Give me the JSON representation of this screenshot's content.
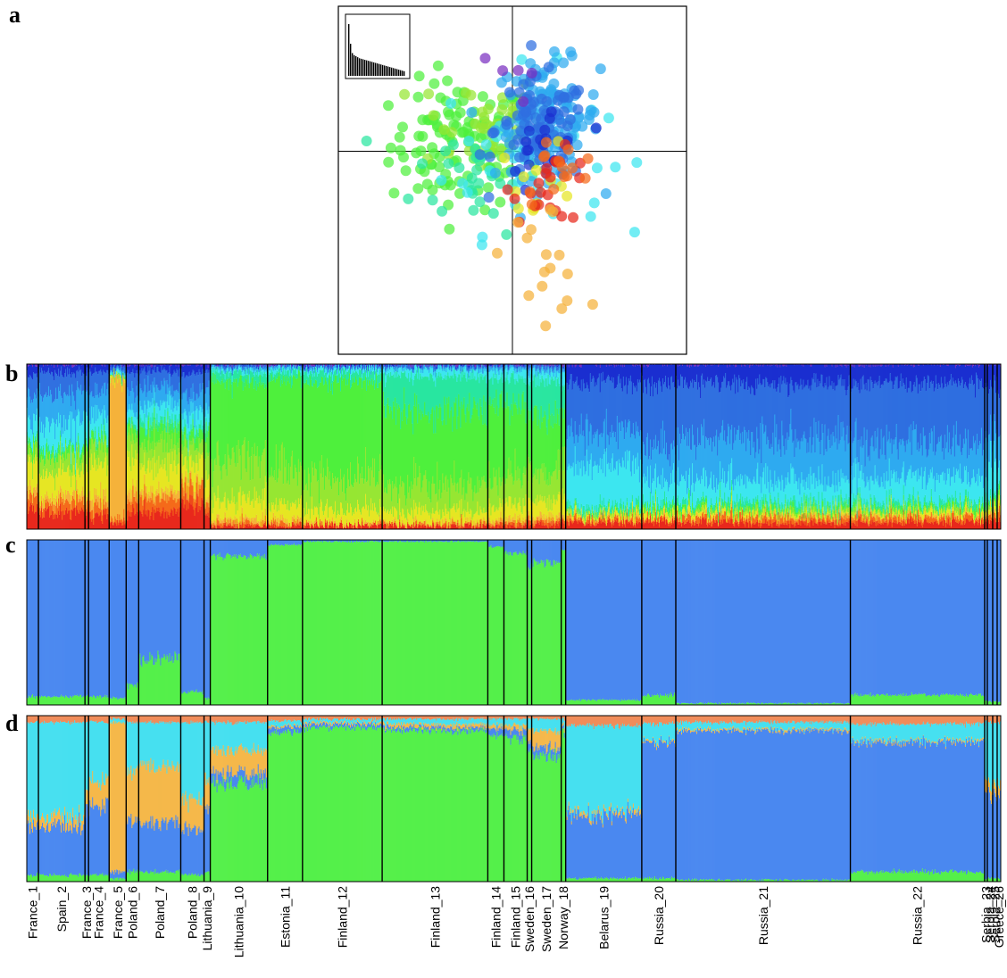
{
  "panel_letters": {
    "a": "a",
    "b": "b",
    "c": "c",
    "d": "d"
  },
  "colors": {
    "ancestry_palette": [
      "#e8281c",
      "#f56a1a",
      "#f5b23a",
      "#e6e622",
      "#96e632",
      "#4ef03c",
      "#28e6a0",
      "#3ce6f0",
      "#2eaaf0",
      "#2f6fe0",
      "#1a2fd0",
      "#7a2fc0"
    ],
    "c_components": {
      "blue": "#4a88f0",
      "green": "#55f04a"
    },
    "d_components": {
      "orange": "#f08c5a",
      "cyan": "#46e0f0",
      "yellow": "#f5b84a",
      "blue": "#4a88f0",
      "green": "#55f04a"
    }
  },
  "chart_data": [
    {
      "panel": "a",
      "type": "scatter",
      "title": "",
      "xlabel": "",
      "ylabel": "",
      "axes_cross_at": [
        0,
        0
      ],
      "xlim": [
        -3,
        3
      ],
      "ylim": [
        -3.5,
        2.5
      ],
      "inset_eigenvalues": [
        1.0,
        0.62,
        0.44,
        0.4,
        0.38,
        0.36,
        0.34,
        0.33,
        0.32,
        0.31,
        0.3,
        0.29,
        0.28,
        0.27,
        0.26,
        0.25,
        0.24,
        0.23,
        0.22,
        0.21,
        0.2,
        0.19,
        0.18,
        0.17,
        0.16,
        0.15,
        0.14,
        0.13,
        0.12,
        0.11,
        0.1,
        0.09
      ],
      "clusters": [
        {
          "color": "#4ef03c",
          "center": [
            -0.9,
            0.1
          ],
          "spread": [
            0.6,
            0.55
          ],
          "n": 110
        },
        {
          "color": "#96e632",
          "center": [
            -0.6,
            0.5
          ],
          "spread": [
            0.55,
            0.45
          ],
          "n": 40
        },
        {
          "color": "#28e6a0",
          "center": [
            -0.6,
            -0.4
          ],
          "spread": [
            0.55,
            0.5
          ],
          "n": 30
        },
        {
          "color": "#3ce6f0",
          "center": [
            0.2,
            0.0
          ],
          "spread": [
            0.7,
            0.7
          ],
          "n": 45
        },
        {
          "color": "#2eaaf0",
          "center": [
            0.6,
            0.55
          ],
          "spread": [
            0.45,
            0.5
          ],
          "n": 130
        },
        {
          "color": "#2f6fe0",
          "center": [
            0.5,
            0.35
          ],
          "spread": [
            0.4,
            0.45
          ],
          "n": 90
        },
        {
          "color": "#1a2fd0",
          "center": [
            0.6,
            0.1
          ],
          "spread": [
            0.35,
            0.45
          ],
          "n": 18
        },
        {
          "color": "#7a2fc0",
          "center": [
            0.1,
            1.3
          ],
          "spread": [
            0.2,
            0.3
          ],
          "n": 5
        },
        {
          "color": "#e6e622",
          "center": [
            0.4,
            -0.5
          ],
          "spread": [
            0.35,
            0.35
          ],
          "n": 12
        },
        {
          "color": "#e8281c",
          "center": [
            0.7,
            -0.6
          ],
          "spread": [
            0.35,
            0.3
          ],
          "n": 22
        },
        {
          "color": "#f56a1a",
          "center": [
            0.8,
            -0.3
          ],
          "spread": [
            0.35,
            0.3
          ],
          "n": 14
        },
        {
          "color": "#f5b23a",
          "center": [
            0.55,
            -1.8
          ],
          "spread": [
            0.35,
            0.5
          ],
          "n": 18
        }
      ]
    },
    {
      "panel": "b",
      "type": "stacked-bar",
      "note_values": "per-population mean ancestry proportions (K=12), bottom to top in palette order",
      "populations": [
        {
          "label": "France_1",
          "n": 13,
          "props": [
            0.12,
            0.08,
            0.05,
            0.18,
            0.08,
            0.04,
            0.02,
            0.12,
            0.14,
            0.12,
            0.05,
            0.0
          ]
        },
        {
          "label": "Spain_2",
          "n": 52,
          "props": [
            0.1,
            0.06,
            0.04,
            0.14,
            0.1,
            0.04,
            0.02,
            0.14,
            0.18,
            0.13,
            0.05,
            0.0
          ]
        },
        {
          "label": "France_3",
          "n": 4,
          "props": [
            0.1,
            0.08,
            0.05,
            0.18,
            0.1,
            0.04,
            0.02,
            0.12,
            0.16,
            0.11,
            0.04,
            0.0
          ]
        },
        {
          "label": "France_4",
          "n": 23,
          "props": [
            0.08,
            0.06,
            0.06,
            0.2,
            0.12,
            0.05,
            0.02,
            0.12,
            0.14,
            0.11,
            0.04,
            0.0
          ]
        },
        {
          "label": "France_5",
          "n": 19,
          "props": [
            0.04,
            0.02,
            0.86,
            0.02,
            0.01,
            0.0,
            0.0,
            0.01,
            0.01,
            0.02,
            0.01,
            0.0
          ]
        },
        {
          "label": "Poland_6",
          "n": 14,
          "props": [
            0.12,
            0.08,
            0.05,
            0.2,
            0.12,
            0.06,
            0.02,
            0.08,
            0.12,
            0.11,
            0.04,
            0.0
          ]
        },
        {
          "label": "Poland_7",
          "n": 47,
          "props": [
            0.1,
            0.08,
            0.04,
            0.16,
            0.14,
            0.1,
            0.04,
            0.1,
            0.1,
            0.1,
            0.04,
            0.0
          ]
        },
        {
          "label": "Poland_8",
          "n": 26,
          "props": [
            0.16,
            0.1,
            0.03,
            0.12,
            0.1,
            0.08,
            0.03,
            0.1,
            0.12,
            0.11,
            0.05,
            0.0
          ]
        },
        {
          "label": "Lithuania_9",
          "n": 7,
          "props": [
            0.1,
            0.06,
            0.03,
            0.14,
            0.14,
            0.12,
            0.04,
            0.1,
            0.12,
            0.11,
            0.04,
            0.0
          ]
        },
        {
          "label": "Lithuania_10",
          "n": 64,
          "props": [
            0.02,
            0.02,
            0.02,
            0.12,
            0.24,
            0.48,
            0.06,
            0.02,
            0.01,
            0.01,
            0.0,
            0.0
          ]
        },
        {
          "label": "Estonia_11",
          "n": 39,
          "props": [
            0.02,
            0.02,
            0.02,
            0.1,
            0.22,
            0.54,
            0.05,
            0.02,
            0.01,
            0.0,
            0.0,
            0.0
          ]
        },
        {
          "label": "Finland_12",
          "n": 89,
          "props": [
            0.02,
            0.01,
            0.01,
            0.08,
            0.2,
            0.58,
            0.06,
            0.02,
            0.01,
            0.01,
            0.0,
            0.0
          ]
        },
        {
          "label": "Finland_13",
          "n": 118,
          "props": [
            0.02,
            0.01,
            0.01,
            0.07,
            0.16,
            0.46,
            0.21,
            0.04,
            0.01,
            0.01,
            0.0,
            0.0
          ]
        },
        {
          "label": "Finland_14",
          "n": 18,
          "props": [
            0.02,
            0.02,
            0.02,
            0.08,
            0.18,
            0.44,
            0.16,
            0.05,
            0.02,
            0.01,
            0.0,
            0.0
          ]
        },
        {
          "label": "Finland_15",
          "n": 26,
          "props": [
            0.02,
            0.02,
            0.02,
            0.1,
            0.18,
            0.42,
            0.16,
            0.05,
            0.02,
            0.01,
            0.0,
            0.0
          ]
        },
        {
          "label": "Sweden_16",
          "n": 5,
          "props": [
            0.03,
            0.02,
            0.02,
            0.1,
            0.18,
            0.36,
            0.18,
            0.06,
            0.03,
            0.02,
            0.0,
            0.0
          ]
        },
        {
          "label": "Sweden_17",
          "n": 33,
          "props": [
            0.03,
            0.02,
            0.02,
            0.1,
            0.18,
            0.34,
            0.22,
            0.05,
            0.02,
            0.02,
            0.0,
            0.0
          ]
        },
        {
          "label": "Norway_18",
          "n": 5,
          "props": [
            0.04,
            0.02,
            0.02,
            0.12,
            0.2,
            0.3,
            0.16,
            0.08,
            0.03,
            0.02,
            0.01,
            0.0
          ]
        },
        {
          "label": "Belarus_19",
          "n": 85,
          "props": [
            0.04,
            0.02,
            0.01,
            0.02,
            0.01,
            0.01,
            0.03,
            0.26,
            0.2,
            0.3,
            0.1,
            0.0
          ]
        },
        {
          "label": "Russia_20",
          "n": 38,
          "props": [
            0.04,
            0.02,
            0.01,
            0.02,
            0.02,
            0.02,
            0.03,
            0.14,
            0.2,
            0.38,
            0.12,
            0.0
          ]
        },
        {
          "label": "Russia_21",
          "n": 195,
          "props": [
            0.04,
            0.03,
            0.01,
            0.02,
            0.02,
            0.02,
            0.03,
            0.13,
            0.25,
            0.34,
            0.11,
            0.0
          ]
        },
        {
          "label": "Russia_22",
          "n": 150,
          "props": [
            0.04,
            0.03,
            0.01,
            0.02,
            0.02,
            0.02,
            0.03,
            0.15,
            0.21,
            0.36,
            0.11,
            0.0
          ]
        },
        {
          "label": "Serbia_23",
          "n": 3,
          "props": [
            0.05,
            0.03,
            0.02,
            0.03,
            0.02,
            0.02,
            0.03,
            0.18,
            0.2,
            0.3,
            0.12,
            0.0
          ]
        },
        {
          "label": "Serbia_24",
          "n": 6,
          "props": [
            0.05,
            0.03,
            0.02,
            0.03,
            0.02,
            0.02,
            0.03,
            0.18,
            0.2,
            0.3,
            0.12,
            0.0
          ]
        },
        {
          "label": "Serbia_25",
          "n": 5,
          "props": [
            0.05,
            0.03,
            0.02,
            0.03,
            0.02,
            0.02,
            0.03,
            0.18,
            0.2,
            0.3,
            0.12,
            0.0
          ]
        },
        {
          "label": "Greece_26",
          "n": 4,
          "props": [
            0.05,
            0.04,
            0.02,
            0.04,
            0.02,
            0.02,
            0.03,
            0.14,
            0.2,
            0.3,
            0.14,
            0.0
          ]
        }
      ]
    },
    {
      "panel": "c",
      "type": "stacked-bar",
      "note_values": "K=2 mean proportion of green component per population",
      "green_fraction": [
        0.05,
        0.05,
        0.05,
        0.05,
        0.04,
        0.12,
        0.28,
        0.08,
        0.04,
        0.9,
        0.97,
        0.99,
        0.99,
        0.96,
        0.92,
        0.84,
        0.86,
        0.94,
        0.03,
        0.06,
        0.01,
        0.06,
        0.02,
        0.02,
        0.02,
        0.02
      ]
    },
    {
      "panel": "d",
      "type": "stacked-bar",
      "note_values": "K=5 mean proportions [green, blue, yellow, cyan, orange] per population",
      "props": [
        [
          0.04,
          0.3,
          0.06,
          0.56,
          0.04
        ],
        [
          0.04,
          0.3,
          0.06,
          0.56,
          0.04
        ],
        [
          0.04,
          0.4,
          0.1,
          0.42,
          0.04
        ],
        [
          0.04,
          0.42,
          0.14,
          0.36,
          0.04
        ],
        [
          0.02,
          0.04,
          0.9,
          0.02,
          0.02
        ],
        [
          0.06,
          0.3,
          0.3,
          0.3,
          0.04
        ],
        [
          0.06,
          0.3,
          0.34,
          0.26,
          0.04
        ],
        [
          0.04,
          0.26,
          0.18,
          0.48,
          0.04
        ],
        [
          0.06,
          0.36,
          0.18,
          0.36,
          0.04
        ],
        [
          0.6,
          0.06,
          0.14,
          0.16,
          0.04
        ],
        [
          0.9,
          0.03,
          0.01,
          0.03,
          0.03
        ],
        [
          0.93,
          0.02,
          0.01,
          0.02,
          0.02
        ],
        [
          0.91,
          0.02,
          0.02,
          0.03,
          0.02
        ],
        [
          0.88,
          0.04,
          0.02,
          0.04,
          0.02
        ],
        [
          0.86,
          0.05,
          0.03,
          0.04,
          0.02
        ],
        [
          0.78,
          0.05,
          0.08,
          0.07,
          0.02
        ],
        [
          0.76,
          0.05,
          0.1,
          0.07,
          0.02
        ],
        [
          0.9,
          0.02,
          0.02,
          0.04,
          0.02
        ],
        [
          0.02,
          0.38,
          0.02,
          0.52,
          0.06
        ],
        [
          0.02,
          0.82,
          0.01,
          0.1,
          0.05
        ],
        [
          0.01,
          0.9,
          0.01,
          0.04,
          0.04
        ],
        [
          0.06,
          0.78,
          0.01,
          0.1,
          0.05
        ],
        [
          0.02,
          0.5,
          0.08,
          0.36,
          0.04
        ],
        [
          0.02,
          0.5,
          0.06,
          0.38,
          0.04
        ],
        [
          0.02,
          0.5,
          0.06,
          0.38,
          0.04
        ],
        [
          0.02,
          0.5,
          0.06,
          0.38,
          0.04
        ]
      ]
    }
  ]
}
